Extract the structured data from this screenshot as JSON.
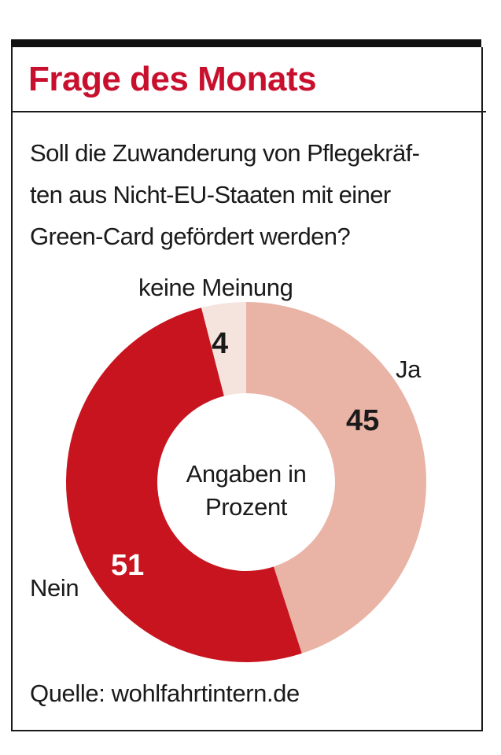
{
  "header": {
    "title": "Frage des Monats"
  },
  "question": {
    "lines": [
      "Soll die Zuwanderung von Pflegekräf-",
      "ten aus Nicht-EU-Staaten mit einer",
      "Green-Card gefördert werden?"
    ]
  },
  "chart_data": {
    "type": "pie",
    "style": "donut",
    "center_label": [
      "Angaben in",
      "Prozent"
    ],
    "slices": [
      {
        "label": "Ja",
        "value": 45,
        "color": "#e9b3a5",
        "value_color": "#1a1a1a"
      },
      {
        "label": "Nein",
        "value": 51,
        "color": "#c8141e",
        "value_color": "#ffffff"
      },
      {
        "label": "keine Meinung",
        "value": 4,
        "color": "#f5e4dd",
        "value_color": "#1a1a1a"
      }
    ]
  },
  "footer": {
    "source": "Quelle: wohlfahrtintern.de"
  }
}
